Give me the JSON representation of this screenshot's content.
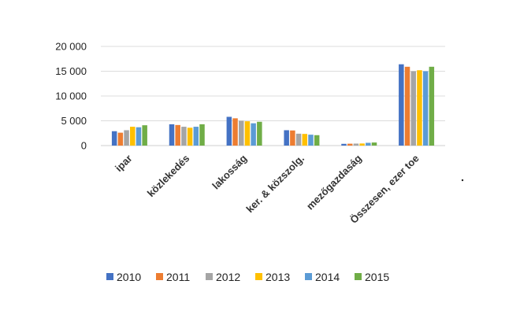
{
  "chart_data": {
    "type": "bar",
    "title": "",
    "xlabel": "",
    "ylabel": "",
    "ylim": [
      0,
      20000
    ],
    "yticks": [
      0,
      5000,
      10000,
      15000,
      20000
    ],
    "ytick_labels": [
      "0",
      "5 000",
      "10 000",
      "15 000",
      "20 000"
    ],
    "grid": true,
    "legend_position": "bottom",
    "categories": [
      "ipar",
      "közlekedés",
      "lakosság",
      "ker. & közszolg.",
      "mezőgazdaság",
      "Összesen, ezer toe"
    ],
    "series": [
      {
        "name": "2010",
        "color": "#4472C4",
        "values": [
          2900,
          4300,
          5800,
          3100,
          350,
          16400
        ]
      },
      {
        "name": "2011",
        "color": "#ED7D31",
        "values": [
          2600,
          4150,
          5500,
          3050,
          380,
          15900
        ]
      },
      {
        "name": "2012",
        "color": "#A5A5A5",
        "values": [
          3100,
          3800,
          5000,
          2400,
          400,
          15000
        ]
      },
      {
        "name": "2013",
        "color": "#FFC000",
        "values": [
          3800,
          3600,
          4900,
          2350,
          420,
          15200
        ]
      },
      {
        "name": "2014",
        "color": "#5B9BD5",
        "values": [
          3700,
          3800,
          4500,
          2200,
          560,
          15000
        ]
      },
      {
        "name": "2015",
        "color": "#70AD47",
        "values": [
          4100,
          4300,
          4800,
          2100,
          620,
          15900
        ]
      }
    ]
  }
}
